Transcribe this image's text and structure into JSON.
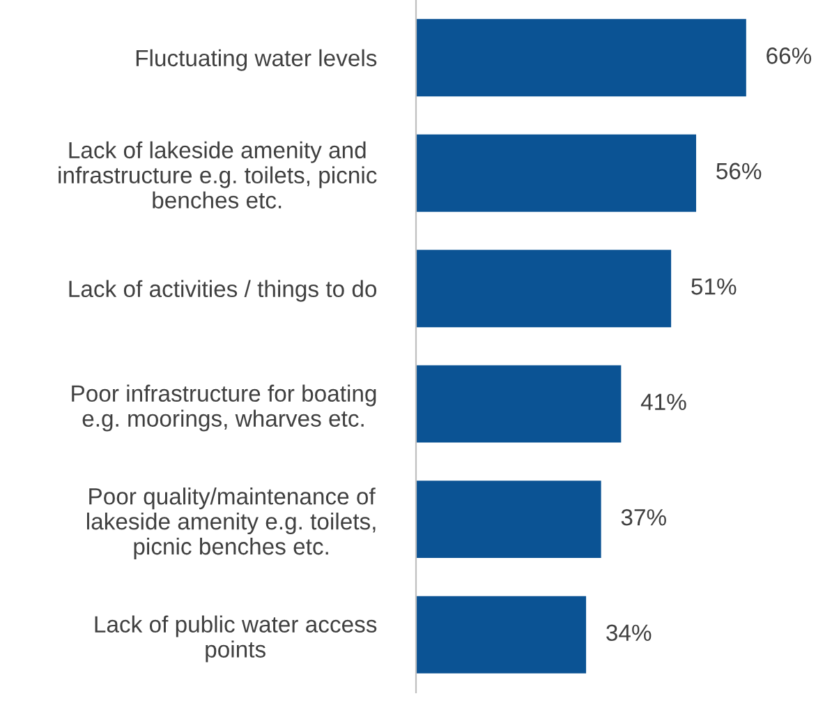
{
  "chart_data": {
    "type": "bar",
    "orientation": "horizontal",
    "categories": [
      "Fluctuating water levels",
      "Lack of lakeside amenity and\ninfrastructure e.g. toilets, picnic\nbenches etc.",
      "Lack of activities / things to do",
      "Poor infrastructure for boating\ne.g. moorings, wharves etc.",
      "Poor quality/maintenance of\nlakeside amenity e.g. toilets,\npicnic benches etc.",
      "Lack of public water access\npoints"
    ],
    "values": [
      66,
      56,
      51,
      41,
      37,
      34
    ],
    "value_labels": [
      "66%",
      "56%",
      "51%",
      "41%",
      "37%",
      "34%"
    ],
    "color": "#0b5394",
    "grid": false,
    "legend": false
  }
}
